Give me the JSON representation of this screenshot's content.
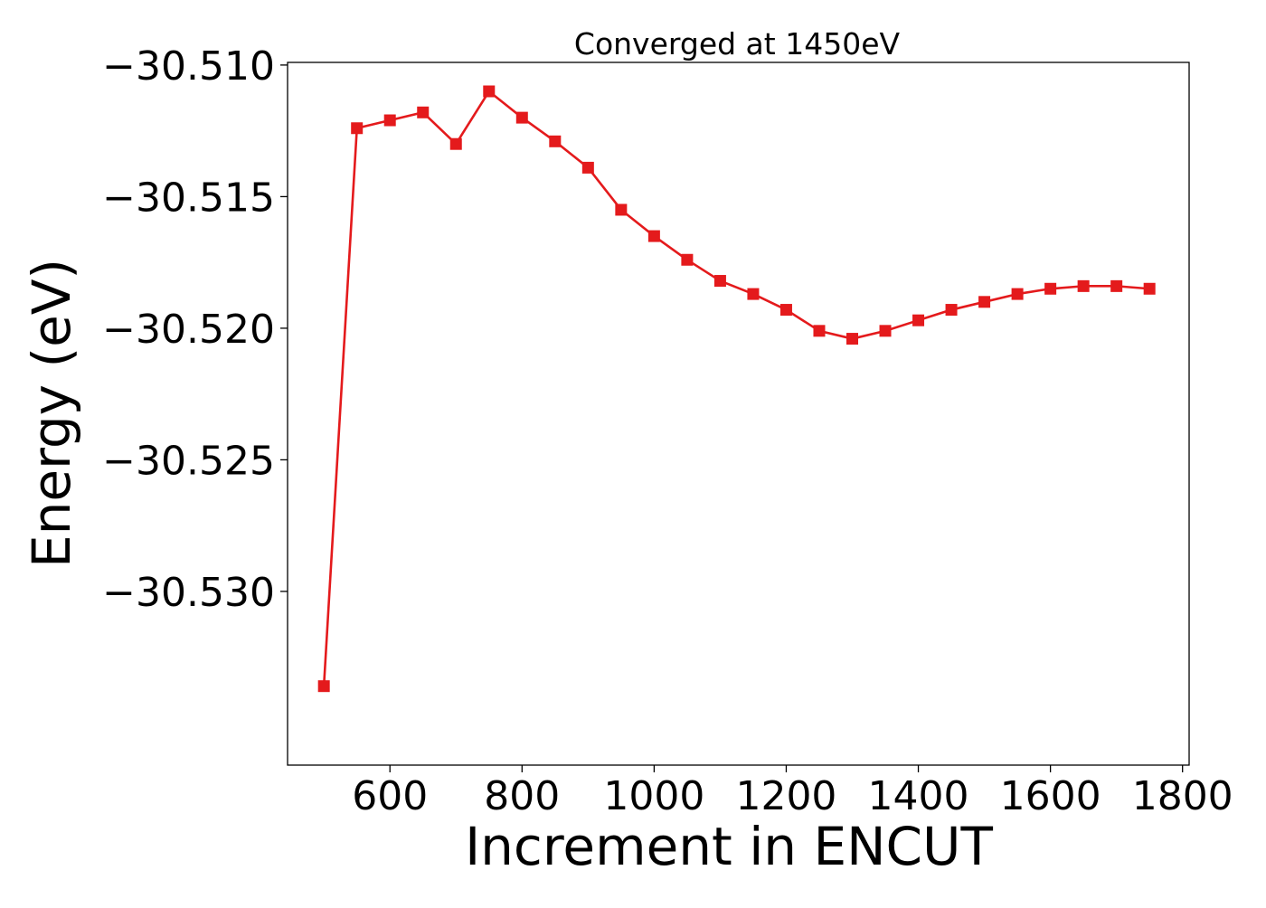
{
  "chart_data": {
    "type": "line",
    "title": "Converged at 1450eV",
    "xlabel": "Increment in ENCUT",
    "ylabel": "Energy (eV)",
    "xlim": [
      445,
      1810
    ],
    "ylim": [
      -30.5366,
      -30.5099
    ],
    "xticks": [
      600,
      800,
      1000,
      1200,
      1400,
      1600,
      1800
    ],
    "yticks": [
      -30.51,
      -30.515,
      -30.52,
      -30.525,
      -30.53
    ],
    "ytick_labels": [
      "−30.510",
      "−30.515",
      "−30.520",
      "−30.525",
      "−30.530"
    ],
    "grid": false,
    "legend": "none",
    "series": [
      {
        "color": "#e41a1c",
        "marker": "square",
        "x": [
          500,
          550,
          600,
          650,
          700,
          750,
          800,
          850,
          900,
          950,
          1000,
          1050,
          1100,
          1150,
          1200,
          1250,
          1300,
          1350,
          1400,
          1450,
          1500,
          1550,
          1600,
          1650,
          1700,
          1750
        ],
        "y": [
          -30.5336,
          -30.5124,
          -30.5121,
          -30.5118,
          -30.513,
          -30.511,
          -30.512,
          -30.5129,
          -30.5139,
          -30.5155,
          -30.5165,
          -30.5174,
          -30.5182,
          -30.5187,
          -30.5193,
          -30.5201,
          -30.5204,
          -30.5201,
          -30.5197,
          -30.5193,
          -30.519,
          -30.5187,
          -30.5185,
          -30.5184,
          -30.5184,
          -30.5185
        ]
      }
    ]
  }
}
